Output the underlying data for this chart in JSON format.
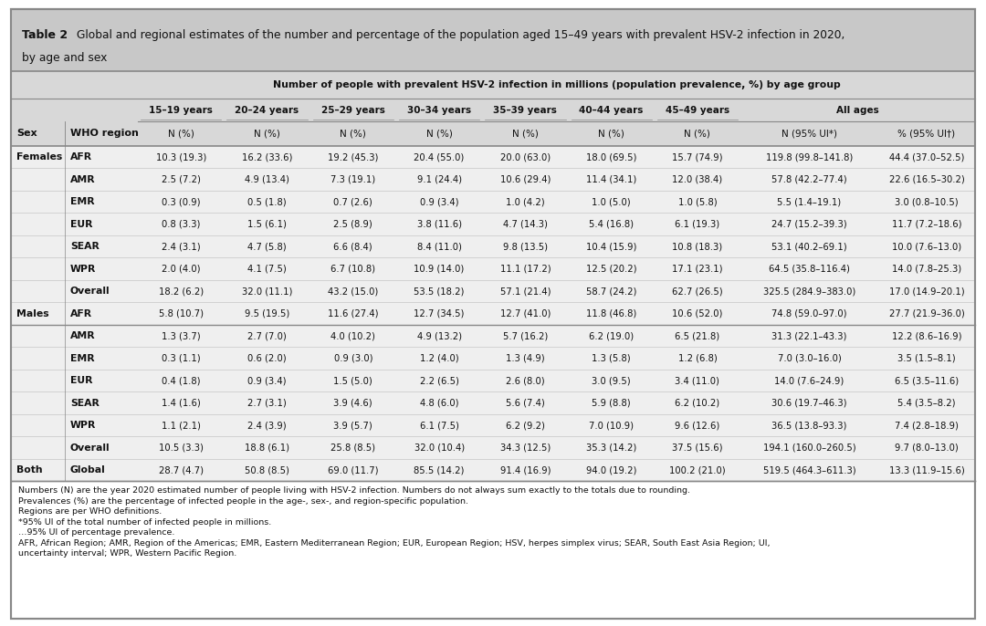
{
  "title_bold": "Table 2",
  "title_text": "Global and regional estimates of the number and percentage of the population aged 15–49 years with prevalent HSV-2 infection in 2020,\nby age and sex",
  "subheader": "Number of people with prevalent HSV-2 infection in millions (population prevalence, %) by age group",
  "col_groups": [
    "15–19 years",
    "20–24 years",
    "25–29 years",
    "30–34 years",
    "35–39 years",
    "40–44 years",
    "45–49 years",
    "All ages"
  ],
  "col_subheaders": [
    "N (%)",
    "N (%)",
    "N (%)",
    "N (%)",
    "N (%)",
    "N (%)",
    "N (%)",
    "N (95% UI*)",
    "% (95% UI†)"
  ],
  "rows": [
    [
      "Females",
      "AFR",
      "10.3 (19.3)",
      "16.2 (33.6)",
      "19.2 (45.3)",
      "20.4 (55.0)",
      "20.0 (63.0)",
      "18.0 (69.5)",
      "15.7 (74.9)",
      "119.8 (99.8–141.8)",
      "44.4 (37.0–52.5)"
    ],
    [
      "",
      "AMR",
      "2.5 (7.2)",
      "4.9 (13.4)",
      "7.3 (19.1)",
      "9.1 (24.4)",
      "10.6 (29.4)",
      "11.4 (34.1)",
      "12.0 (38.4)",
      "57.8 (42.2–77.4)",
      "22.6 (16.5–30.2)"
    ],
    [
      "",
      "EMR",
      "0.3 (0.9)",
      "0.5 (1.8)",
      "0.7 (2.6)",
      "0.9 (3.4)",
      "1.0 (4.2)",
      "1.0 (5.0)",
      "1.0 (5.8)",
      "5.5 (1.4–19.1)",
      "3.0 (0.8–10.5)"
    ],
    [
      "",
      "EUR",
      "0.8 (3.3)",
      "1.5 (6.1)",
      "2.5 (8.9)",
      "3.8 (11.6)",
      "4.7 (14.3)",
      "5.4 (16.8)",
      "6.1 (19.3)",
      "24.7 (15.2–39.3)",
      "11.7 (7.2–18.6)"
    ],
    [
      "",
      "SEAR",
      "2.4 (3.1)",
      "4.7 (5.8)",
      "6.6 (8.4)",
      "8.4 (11.0)",
      "9.8 (13.5)",
      "10.4 (15.9)",
      "10.8 (18.3)",
      "53.1 (40.2–69.1)",
      "10.0 (7.6–13.0)"
    ],
    [
      "",
      "WPR",
      "2.0 (4.0)",
      "4.1 (7.5)",
      "6.7 (10.8)",
      "10.9 (14.0)",
      "11.1 (17.2)",
      "12.5 (20.2)",
      "17.1 (23.1)",
      "64.5 (35.8–116.4)",
      "14.0 (7.8–25.3)"
    ],
    [
      "",
      "Overall",
      "18.2 (6.2)",
      "32.0 (11.1)",
      "43.2 (15.0)",
      "53.5 (18.2)",
      "57.1 (21.4)",
      "58.7 (24.2)",
      "62.7 (26.5)",
      "325.5 (284.9–383.0)",
      "17.0 (14.9–20.1)"
    ],
    [
      "Males",
      "AFR",
      "5.8 (10.7)",
      "9.5 (19.5)",
      "11.6 (27.4)",
      "12.7 (34.5)",
      "12.7 (41.0)",
      "11.8 (46.8)",
      "10.6 (52.0)",
      "74.8 (59.0–97.0)",
      "27.7 (21.9–36.0)"
    ],
    [
      "",
      "AMR",
      "1.3 (3.7)",
      "2.7 (7.0)",
      "4.0 (10.2)",
      "4.9 (13.2)",
      "5.7 (16.2)",
      "6.2 (19.0)",
      "6.5 (21.8)",
      "31.3 (22.1–43.3)",
      "12.2 (8.6–16.9)"
    ],
    [
      "",
      "EMR",
      "0.3 (1.1)",
      "0.6 (2.0)",
      "0.9 (3.0)",
      "1.2 (4.0)",
      "1.3 (4.9)",
      "1.3 (5.8)",
      "1.2 (6.8)",
      "7.0 (3.0–16.0)",
      "3.5 (1.5–8.1)"
    ],
    [
      "",
      "EUR",
      "0.4 (1.8)",
      "0.9 (3.4)",
      "1.5 (5.0)",
      "2.2 (6.5)",
      "2.6 (8.0)",
      "3.0 (9.5)",
      "3.4 (11.0)",
      "14.0 (7.6–24.9)",
      "6.5 (3.5–11.6)"
    ],
    [
      "",
      "SEAR",
      "1.4 (1.6)",
      "2.7 (3.1)",
      "3.9 (4.6)",
      "4.8 (6.0)",
      "5.6 (7.4)",
      "5.9 (8.8)",
      "6.2 (10.2)",
      "30.6 (19.7–46.3)",
      "5.4 (3.5–8.2)"
    ],
    [
      "",
      "WPR",
      "1.1 (2.1)",
      "2.4 (3.9)",
      "3.9 (5.7)",
      "6.1 (7.5)",
      "6.2 (9.2)",
      "7.0 (10.9)",
      "9.6 (12.6)",
      "36.5 (13.8–93.3)",
      "7.4 (2.8–18.9)"
    ],
    [
      "",
      "Overall",
      "10.5 (3.3)",
      "18.8 (6.1)",
      "25.8 (8.5)",
      "32.0 (10.4)",
      "34.3 (12.5)",
      "35.3 (14.2)",
      "37.5 (15.6)",
      "194.1 (160.0–260.5)",
      "9.7 (8.0–13.0)"
    ],
    [
      "Both",
      "Global",
      "28.7 (4.7)",
      "50.8 (8.5)",
      "69.0 (11.7)",
      "85.5 (14.2)",
      "91.4 (16.9)",
      "94.0 (19.2)",
      "100.2 (21.0)",
      "519.5 (464.3–611.3)",
      "13.3 (11.9–15.6)"
    ]
  ],
  "footnotes": [
    "Numbers (N) are the year 2020 estimated number of people living with HSV-2 infection. Numbers do not always sum exactly to the totals due to rounding.",
    "Prevalences (%) are the percentage of infected people in the age-, sex-, and region-specific population.",
    "Regions are per WHO definitions.",
    "*95% UI of the total number of infected people in millions.",
    "…95% UI of percentage prevalence.",
    "AFR, African Region; AMR, Region of the Americas; EMR, Eastern Mediterranean Region; EUR, European Region; HSV, herpes simplex virus; SEAR, South East Asia Region; UI,",
    "uncertainty interval; WPR, Western Pacific Region."
  ],
  "bold_sex_values": [
    "Females",
    "Males",
    "Both"
  ],
  "bg_title": "#c8c8c8",
  "bg_header": "#d8d8d8",
  "bg_row": "#efefef",
  "bg_white": "#ffffff",
  "border_dark": "#888888",
  "border_light": "#bbbbbb",
  "text_color": "#111111"
}
